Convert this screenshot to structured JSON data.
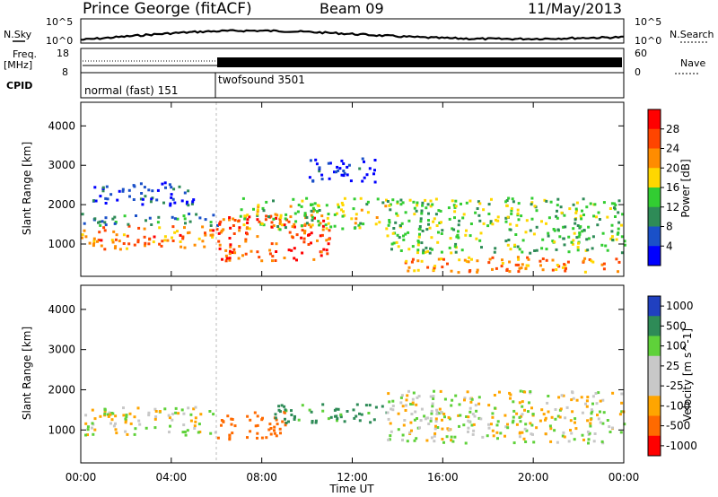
{
  "header": {
    "station": "Prince George (fitACF)",
    "beam": "Beam 09",
    "date": "11/May/2013"
  },
  "strip_noise": {
    "left_label": "N.Sky",
    "left_tick_top": "10^5",
    "left_tick_bottom": "10^0",
    "right_tick_top": "10^5",
    "right_tick_bottom": "10^0",
    "right_label": "N.Search"
  },
  "strip_freq": {
    "left_label_1": "Freq.",
    "left_label_2": "[MHz]",
    "left_tick_top": "18",
    "left_tick_bottom": "8",
    "right_tick_top": "60",
    "right_tick_bottom": "0",
    "right_label": "Nave"
  },
  "strip_cpid": {
    "label": "CPID",
    "segments": [
      {
        "name": "normal (fast) 151"
      },
      {
        "name": "twofsound 3501"
      }
    ]
  },
  "x_axis": {
    "ticks": [
      "00:00",
      "04:00",
      "08:00",
      "12:00",
      "16:00",
      "20:00",
      "00:00"
    ],
    "label": "Time UT"
  },
  "colors": {
    "power": [
      "#0000ff",
      "#1a50c8",
      "#2e8b57",
      "#32cd32",
      "#ffd700",
      "#ff8c00",
      "#ff4500",
      "#ff0000"
    ],
    "velocity_pos": [
      "#2040c0",
      "#2e8b57",
      "#5fd13a",
      "#c8c8c8"
    ],
    "velocity_neg": [
      "#c8c8c8",
      "#ffa500",
      "#ff6a00",
      "#ff0000"
    ]
  },
  "chart_data": [
    {
      "type": "heatmap",
      "panel": "power",
      "ylabel": "Slant Range [km]",
      "x": "Time UT",
      "xlim": [
        0,
        24
      ],
      "ylim": [
        180,
        4600
      ],
      "yticks": [
        1000,
        2000,
        3000,
        4000
      ],
      "colorbar": {
        "label": "Power [dB]",
        "ticks": [
          "4",
          "8",
          "12",
          "16",
          "20",
          "24",
          "28"
        ],
        "range": [
          0,
          32
        ]
      },
      "regions": [
        {
          "t0": 0.0,
          "t1": 6.0,
          "r0": 900,
          "r1": 1500,
          "level": 24
        },
        {
          "t0": 0.0,
          "t1": 6.0,
          "r0": 1500,
          "r1": 1800,
          "level": 10
        },
        {
          "t0": 0.5,
          "t1": 5.0,
          "r0": 2000,
          "r1": 2600,
          "level": 5
        },
        {
          "t0": 6.0,
          "t1": 11.0,
          "r0": 600,
          "r1": 1800,
          "level": 26
        },
        {
          "t0": 7.0,
          "t1": 13.5,
          "r0": 1400,
          "r1": 2200,
          "level": 16
        },
        {
          "t0": 13.5,
          "t1": 24.0,
          "r0": 800,
          "r1": 2200,
          "level": 14
        },
        {
          "t0": 14.0,
          "t1": 24.0,
          "r0": 300,
          "r1": 700,
          "level": 22
        },
        {
          "t0": 10.0,
          "t1": 13.0,
          "r0": 2600,
          "r1": 3200,
          "level": 4
        }
      ]
    },
    {
      "type": "heatmap",
      "panel": "velocity",
      "ylabel": "Slant Range [km]",
      "x": "Time UT",
      "xlim": [
        0,
        24
      ],
      "ylim": [
        180,
        4600
      ],
      "yticks": [
        1000,
        2000,
        3000,
        4000
      ],
      "colorbar": {
        "label": "Velocity [m s^-1]",
        "ticks": [
          "1000",
          "500",
          "100",
          "25",
          "-25",
          "-100",
          "-500",
          "-1000"
        ]
      },
      "regions": [
        {
          "t0": 0.0,
          "t1": 6.0,
          "r0": 900,
          "r1": 1600,
          "velocity": 0
        },
        {
          "t0": 6.0,
          "t1": 9.0,
          "r0": 800,
          "r1": 1500,
          "velocity": -300
        },
        {
          "t0": 8.5,
          "t1": 13.5,
          "r0": 1200,
          "r1": 1700,
          "velocity": 150
        },
        {
          "t0": 13.5,
          "t1": 24.0,
          "r0": 700,
          "r1": 2000,
          "velocity": 0
        }
      ]
    }
  ]
}
